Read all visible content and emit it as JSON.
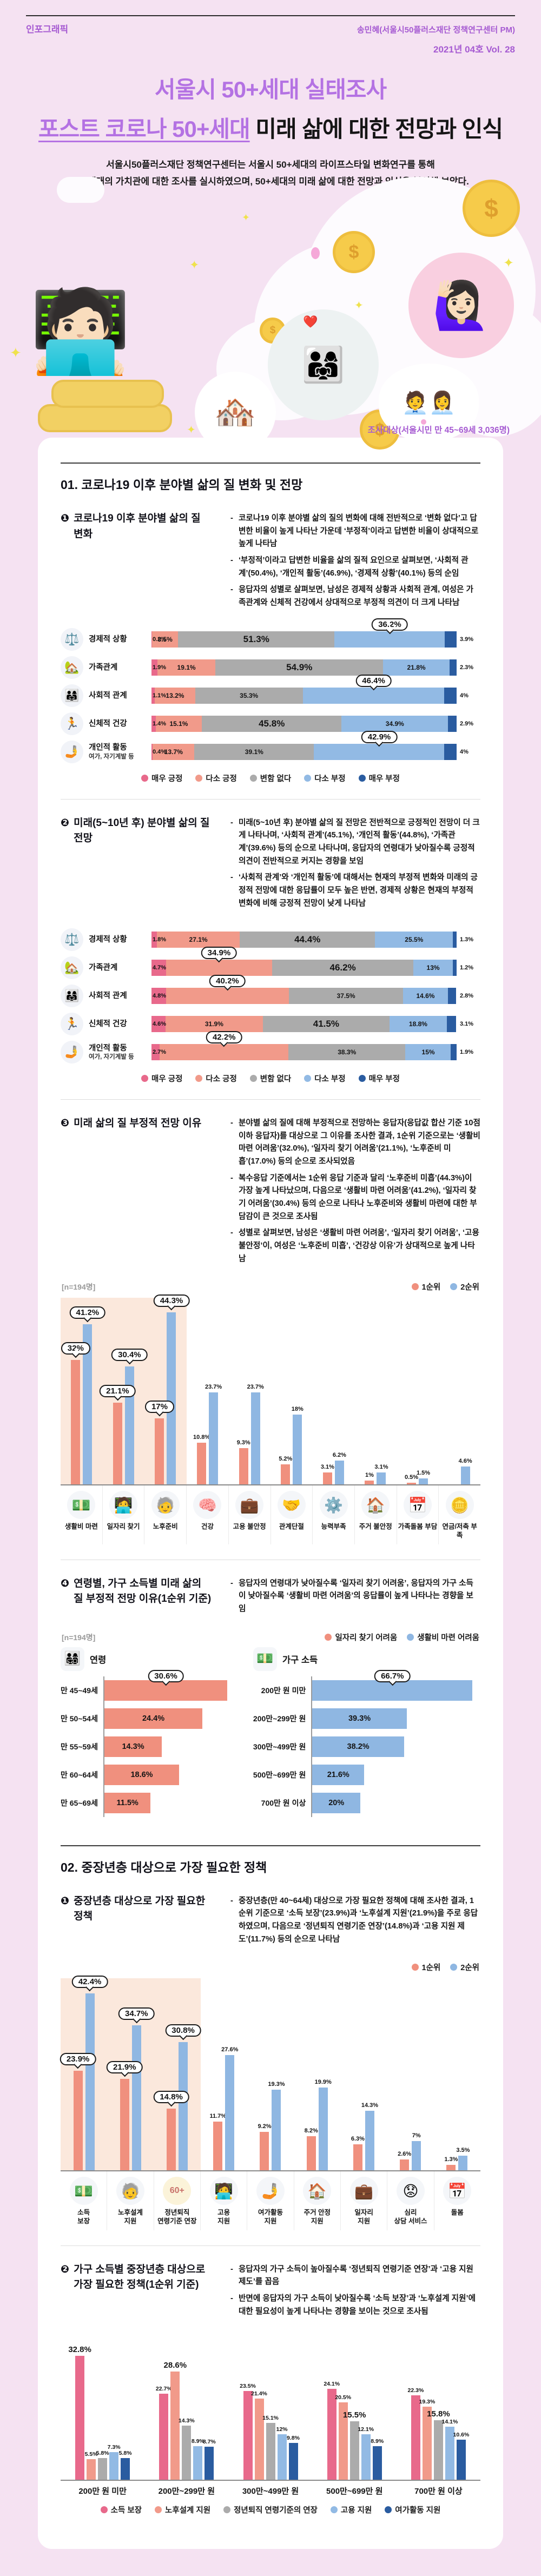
{
  "header": {
    "kicker": "인포그래픽",
    "byline": "송민혜(서울시50플러스재단 정책연구센터 PM)",
    "issue": "2021년 04호  Vol. 28",
    "title_line1": "서울시 50+세대 실태조사",
    "title_line2_purple": "포스트 코로나 50+세대",
    "title_line2_black": " 미래 삶에 대한 전망과 인식",
    "intro_line1": "서울시50플러스재단 정책연구센터는 서울시 50+세대의 라이프스타일 변화연구를 통해",
    "intro_line2": "50+세대의 가치관에 대한 조사를 실시하였으며, 50+세대의 미래 삶에 대한 전망과 인식을 분석해 보았다.",
    "survey_note": "조사대상(서울시민 만 45~69세 3,036명)"
  },
  "illustration": {
    "dollar": "$",
    "person_glyph": "🧑🏻‍💻",
    "woman_glyph": "🙋🏻‍♀️",
    "family_glyph": "👨‍👩‍👧",
    "hearts_glyph": "❤️",
    "village_glyph": "🏘️",
    "meeting_glyph": "🧑‍💼👩‍💼",
    "sparkle": "✦"
  },
  "colors": {
    "very_positive": "#E8698B",
    "some_positive": "#F19A8A",
    "no_change": "#ABABAB",
    "some_negative": "#92BAE4",
    "very_negative": "#2A5CA0",
    "rank1": "#F0907E",
    "rank2": "#8FB7E2",
    "highlight": "#FBE8DC",
    "purple": "#A65BD2"
  },
  "sections": [
    {
      "title": "01.  코로나19 이후 분야별 삶의 질 변화 및 전망",
      "subs": [
        {
          "num": "❶",
          "heading": "코로나19 이후 분야별 삶의 질 변화",
          "bullets": [
            "코로나19 이후 분야별 삶의 질의 변화에 대해 전반적으로 ‘변화 없다’고 답변한 비율이 높게 나타난 가운데 ‘부정적’이라고 답변한 비율이 상대적으로 높게 나타남",
            "‘부정적’이라고 답변한 비율을 삶의 질적 요인으로 살펴보면, ‘사회적 관계’(50.4%), ‘개인적 활동’(46.9%), ‘경제적 상황’(40.1%) 등의 순임",
            "응답자의 성별로 살펴보면, 남성은 경제적 상황과 사회적 관계, 여성은 가족관계와 신체적 건강에서 상대적으로 부정적 의견이 더 크게 나타남"
          ]
        },
        {
          "num": "❷",
          "heading": "미래(5~10년 후) 분야별 삶의 질 전망",
          "bullets": [
            "미래(5~10년 후) 분야별 삶의 질 전망은 전반적으로 긍정적인 전망이 더 크게 나타나며, ‘사회적 관계’(45.1%), ‘개인적 활동’(44.8%), ‘가족관계’(39.6%) 등의 순으로 나타나며, 응답자의 연령대가 낮아질수록 긍정적 의견이 전반적으로 커지는 경향을 보임",
            "‘사회적 관계’와 ‘개인적 활동’에 대해서는 현재의 부정적 변화와 미래의 긍정적 전망에 대한 응답률이 모두 높은 반면, 경제적 상황은 현재의 부정적 변화에 비해 긍정적 전망이 낮게 나타남"
          ]
        },
        {
          "num": "❸",
          "heading": "미래 삶의 질 부정적 전망 이유",
          "n_label": "[n=194명]",
          "bullets": [
            "분야별 삶의 질에 대해 부정적으로 전망하는 응답자(응답값 합산 기준 10점 이하 응답자)를 대상으로 그 이유를 조사한 결과, 1순위 기준으로는 ‘생활비 마련 어려움’(32.0%), ‘일자리 찾기 어려움’(21.1%), ‘노후준비 미흡’(17.0%) 등의 순으로 조사되었음",
            "복수응답 기준에서는 1순위 응답 기준과 달리 ‘노후준비 미흡’(44.3%)이 가장 높게 나타났으며, 다음으로 ‘생활비 마련 어려움’(41.2%), ‘일자리 찾기 어려움’(30.4%) 등의 순으로 나타나 노후준비와 생활비 마련에 대한 부담감이 큰 것으로 조사됨",
            "성별로 살펴보면, 남성은 ‘생활비 마련 어려움’, ‘일자리 찾기 어려움’, ‘고용 불안정’이, 여성은 ‘노후준비 미흡’, ‘건강상 이유’가 상대적으로 높게 나타남"
          ]
        },
        {
          "num": "❹",
          "heading": "연령별, 가구 소득별 미래 삶의 질 부정적 전망 이유(1순위 기준)",
          "n_label": "[n=194명]",
          "bullets": [
            "응답자의 연령대가 낮아질수록 ‘일자리 찾기 어려움’, 응답자의 가구 소득이 낮아질수록 ‘생활비 마련 어려움’의 응답률이 높게 나타나는 경향을 보임"
          ]
        }
      ]
    },
    {
      "title": "02.  중장년층 대상으로 가장 필요한 정책",
      "subs": [
        {
          "num": "❶",
          "heading": "중장년층 대상으로 가장 필요한 정책",
          "bullets": [
            "중장년층(만 40~64세) 대상으로 가장 필요한 정책에 대해 조사한 결과, 1순위 기준으로 ‘소득 보장’(23.9%)과 ‘노후설계 지원’(21.9%)을 주로 응답하였으며, 다음으로 ‘정년퇴직 연령기준 연장’(14.8%)과 ‘고용 지원 제도’(11.7%) 등의 순으로 나타남"
          ]
        },
        {
          "num": "❷",
          "heading": "가구 소득별 중장년층 대상으로 가장 필요한 정책(1순위 기준)",
          "bullets": [
            "응답자의 가구 소득이 높아질수록 ‘정년퇴직 연령기준 연장’과 ‘고용 지원 제도’를 꼽음",
            "반면에 응답자의 가구 소득이 낮아질수록 ‘소득 보장’과 ‘노후설계 지원’에 대한 필요성이 높게 나타나는 경향을 보이는 것으로 조사됨"
          ]
        }
      ]
    }
  ],
  "chart_data": [
    {
      "type": "bar",
      "layout": "stacked-horizontal",
      "title": "코로나19 이후 분야별 삶의 질 변화",
      "legend": [
        "매우 긍정",
        "다소 긍정",
        "변함 없다",
        "다소 부정",
        "매우 부정"
      ],
      "colors": [
        "#E8698B",
        "#F19A8A",
        "#ABABAB",
        "#92BAE4",
        "#2A5CA0"
      ],
      "rows": [
        {
          "category": "경제적 상황",
          "icon": "balance-scale-icon",
          "glyph": "⚖️",
          "values": [
            0.2,
            8.5,
            51.3,
            36.2,
            3.9
          ],
          "callout_segment": 3,
          "dotted_segment": 3
        },
        {
          "category": "가족관계",
          "icon": "home-heart-icon",
          "glyph": "🏡",
          "values": [
            1.9,
            19.1,
            54.9,
            21.8,
            2.3
          ],
          "callout_segment": null,
          "dotted_segment": null
        },
        {
          "category": "사회적 관계",
          "icon": "people-group-icon",
          "glyph": "👨‍👩‍👧",
          "values": [
            1.1,
            13.2,
            35.3,
            46.4,
            4
          ],
          "callout_segment": 3,
          "dotted_segment": 3
        },
        {
          "category": "신체적 건강",
          "icon": "runner-icon",
          "glyph": "🏃",
          "values": [
            1.4,
            15.1,
            45.8,
            34.9,
            2.9
          ],
          "callout_segment": null,
          "dotted_segment": null
        },
        {
          "category": "개인적 활동",
          "subcategory": "여가, 자기계발 등",
          "icon": "phone-hand-icon",
          "glyph": "🤳",
          "values": [
            0.4,
            13.7,
            39.1,
            42.9,
            4
          ],
          "callout_segment": 3,
          "dotted_segment": 3
        }
      ]
    },
    {
      "type": "bar",
      "layout": "stacked-horizontal",
      "title": "미래(5~10년 후) 분야별 삶의 질 전망",
      "legend": [
        "매우 긍정",
        "다소 긍정",
        "변함 없다",
        "다소 부정",
        "매우 부정"
      ],
      "colors": [
        "#E8698B",
        "#F19A8A",
        "#ABABAB",
        "#92BAE4",
        "#2A5CA0"
      ],
      "rows": [
        {
          "category": "경제적 상황",
          "icon": "balance-scale-icon",
          "glyph": "⚖️",
          "values": [
            1.8,
            27.1,
            44.4,
            25.5,
            1.3
          ],
          "callout_segment": null,
          "dotted_segment": null
        },
        {
          "category": "가족관계",
          "icon": "home-heart-icon",
          "glyph": "🏡",
          "values": [
            4.7,
            34.9,
            46.2,
            13,
            1.2
          ],
          "callout_segment": 1,
          "dotted_segment": 1
        },
        {
          "category": "사회적 관계",
          "icon": "people-group-icon",
          "glyph": "👨‍👩‍👧",
          "values": [
            4.8,
            40.2,
            37.5,
            14.6,
            2.8
          ],
          "callout_segment": 1,
          "dotted_segment": 1
        },
        {
          "category": "신체적 건강",
          "icon": "runner-icon",
          "glyph": "🏃",
          "values": [
            4.6,
            31.9,
            41.5,
            18.8,
            3.1
          ],
          "callout_segment": null,
          "dotted_segment": null
        },
        {
          "category": "개인적 활동",
          "subcategory": "여가, 자기계발 등",
          "icon": "phone-hand-icon",
          "glyph": "🤳",
          "values": [
            2.7,
            42.2,
            38.3,
            15,
            1.9
          ],
          "callout_segment": 1,
          "dotted_segment": 1
        }
      ]
    },
    {
      "type": "bar",
      "layout": "grouped-vertical",
      "title": "미래 삶의 질 부정적 전망 이유",
      "n": "[n=194명]",
      "legend": [
        "1순위",
        "2순위"
      ],
      "colors": [
        "#F0907E",
        "#8FB7E2"
      ],
      "ymax": 48,
      "highlight_first": 3,
      "categories": [
        {
          "label": "생활비 마련",
          "icon": "cash-icon",
          "glyph": "💵",
          "values": [
            32,
            41.2
          ],
          "callouts": [
            true,
            true
          ]
        },
        {
          "label": "일자리 찾기",
          "icon": "job-search-icon",
          "glyph": "🧑‍💻",
          "values": [
            21.1,
            30.4
          ],
          "callouts": [
            true,
            true
          ]
        },
        {
          "label": "노후준비",
          "icon": "elderly-couple-icon",
          "glyph": "🧓",
          "values": [
            17,
            44.3
          ],
          "callouts": [
            true,
            true
          ]
        },
        {
          "label": "건강",
          "icon": "health-mind-icon",
          "glyph": "🧠",
          "values": [
            10.8,
            23.7
          ],
          "callouts": [
            false,
            false
          ]
        },
        {
          "label": "고용 불안정",
          "icon": "briefcase-icon",
          "glyph": "💼",
          "values": [
            9.3,
            23.7
          ],
          "callouts": [
            false,
            false
          ]
        },
        {
          "label": "관계단절",
          "icon": "broken-relation-icon",
          "glyph": "🤝",
          "values": [
            5.2,
            18
          ],
          "callouts": [
            false,
            false
          ]
        },
        {
          "label": "능력부족",
          "icon": "skill-gap-icon",
          "glyph": "⚙️",
          "values": [
            3.1,
            6.2
          ],
          "callouts": [
            false,
            false
          ]
        },
        {
          "label": "주거 불안정",
          "icon": "house-icon",
          "glyph": "🏠",
          "values": [
            1,
            3.1
          ],
          "callouts": [
            false,
            false
          ]
        },
        {
          "label": "가족돌봄 부담",
          "icon": "care-calendar-icon",
          "glyph": "📅",
          "values": [
            0.5,
            1.5
          ],
          "callouts": [
            false,
            false
          ]
        },
        {
          "label": "연금/저축 부족",
          "icon": "pension-icon",
          "glyph": "🪙",
          "values": [
            null,
            4.6
          ],
          "callouts": [
            false,
            false
          ]
        }
      ]
    },
    {
      "type": "bar",
      "layout": "horizontal-two-panels",
      "title": "연령별, 가구 소득별 미래 삶의 질 부정적 전망 이유(1순위 기준)",
      "n": "[n=194명]",
      "legend": [
        {
          "label": "일자리 찾기 어려움",
          "color": "#F0907E"
        },
        {
          "label": "생활비 마련 어려움",
          "color": "#8FB7E2"
        }
      ],
      "groups": [
        {
          "title": "연령",
          "icon": "family-icon",
          "glyph": "👨‍👩‍👧‍👦",
          "color": "#F0907E",
          "max": 33,
          "rows": [
            {
              "label": "만 45~49세",
              "value": 30.6,
              "dotted": true,
              "callout": true
            },
            {
              "label": "만 50~54세",
              "value": 24.4
            },
            {
              "label": "만 55~59세",
              "value": 14.3
            },
            {
              "label": "만 60~64세",
              "value": 18.6
            },
            {
              "label": "만 65~69세",
              "value": 11.5
            }
          ]
        },
        {
          "title": "가구 소득",
          "icon": "money-icon",
          "glyph": "💵",
          "color": "#8FB7E2",
          "max": 70,
          "rows": [
            {
              "label": "200만 원 미만",
              "value": 66.7,
              "dotted": true,
              "callout": true
            },
            {
              "label": "200만~299만 원",
              "value": 39.3
            },
            {
              "label": "300만~499만 원",
              "value": 38.2
            },
            {
              "label": "500만~699만 원",
              "value": 21.6
            },
            {
              "label": "700만 원 이상",
              "value": 20
            }
          ]
        }
      ]
    },
    {
      "type": "bar",
      "layout": "grouped-vertical",
      "title": "중장년층 대상으로 가장 필요한 정책",
      "legend": [
        "1순위",
        "2순위"
      ],
      "colors": [
        "#F0907E",
        "#8FB7E2"
      ],
      "ymax": 46,
      "highlight_first": 3,
      "categories": [
        {
          "label": "소득\n보장",
          "icon": "income-guarantee-icon",
          "glyph": "💵",
          "values": [
            23.9,
            42.4
          ],
          "callouts": [
            true,
            true
          ]
        },
        {
          "label": "노후설계\n지원",
          "icon": "retirement-plan-icon",
          "glyph": "🧓",
          "values": [
            21.9,
            34.7
          ],
          "callouts": [
            true,
            true
          ]
        },
        {
          "label": "정년퇴직\n연령기준 연장",
          "icon": "retirement-age-60-icon",
          "glyph": "60+",
          "values": [
            14.8,
            30.8
          ],
          "callouts": [
            true,
            true
          ]
        },
        {
          "label": "고용\n지원",
          "icon": "employment-support-icon",
          "glyph": "🧑‍💻",
          "values": [
            11.7,
            27.6
          ],
          "callouts": [
            false,
            false
          ]
        },
        {
          "label": "여가활동\n지원",
          "icon": "leisure-icon",
          "glyph": "🤳",
          "values": [
            9.2,
            19.3
          ],
          "callouts": [
            false,
            false
          ]
        },
        {
          "label": "주거 안정\n지원",
          "icon": "housing-icon",
          "glyph": "🏠",
          "values": [
            8.2,
            19.9
          ],
          "callouts": [
            false,
            false
          ]
        },
        {
          "label": "일자리\n지원",
          "icon": "jobs-icon",
          "glyph": "💼",
          "values": [
            6.3,
            14.3
          ],
          "callouts": [
            false,
            false
          ]
        },
        {
          "label": "심리\n상담 서비스",
          "icon": "counseling-icon",
          "glyph": "😟",
          "values": [
            2.6,
            7
          ],
          "callouts": [
            false,
            false
          ]
        },
        {
          "label": "돌봄",
          "icon": "care-icon",
          "glyph": "📅",
          "values": [
            1.3,
            3.5
          ],
          "callouts": [
            false,
            false
          ]
        }
      ]
    },
    {
      "type": "bar",
      "layout": "grouped-vertical-multiseries",
      "title": "가구 소득별 중장년층 대상으로 가장 필요한 정책(1순위 기준)",
      "ymax": 36,
      "series": [
        "소득 보장",
        "노후설계 지원",
        "정년퇴직 연령기준의 연장",
        "고용 지원",
        "여가활동 지원"
      ],
      "colors": [
        "#E8698B",
        "#F19A8A",
        "#ABABAB",
        "#92BAE4",
        "#2A5CA0"
      ],
      "groups": [
        {
          "label": "200만 원 미만",
          "values": [
            32.8,
            5.5,
            5.8,
            7.3,
            5.8
          ],
          "dotted": [
            0
          ],
          "emphasis": [
            0
          ]
        },
        {
          "label": "200만~299만 원",
          "values": [
            22.7,
            28.6,
            14.3,
            8.9,
            8.7
          ],
          "dotted": [
            1
          ],
          "emphasis": [
            1
          ]
        },
        {
          "label": "300만~499만 원",
          "values": [
            23.5,
            21.4,
            15.1,
            12,
            9.8
          ],
          "dotted": [],
          "emphasis": []
        },
        {
          "label": "500만~699만 원",
          "values": [
            24.1,
            20.5,
            15.5,
            12.1,
            8.9
          ],
          "dotted": [
            2
          ],
          "emphasis": [
            2
          ]
        },
        {
          "label": "700만 원 이상",
          "values": [
            22.3,
            19.3,
            15.8,
            14.1,
            10.6
          ],
          "dotted": [
            2
          ],
          "emphasis": [
            2
          ]
        }
      ]
    }
  ]
}
